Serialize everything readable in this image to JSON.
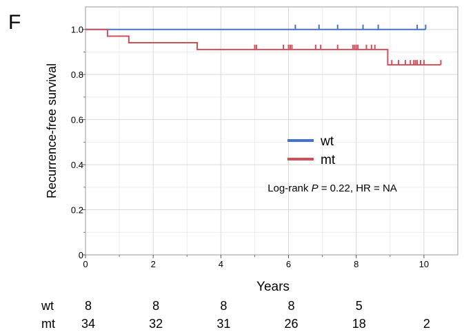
{
  "panel_label": "F",
  "annotation": {
    "prefix": "Log-rank ",
    "p_symbol": "P",
    "suffix": " = 0.22, HR = NA"
  },
  "risk_table": {
    "times": [
      0,
      2,
      4,
      6,
      8,
      10
    ],
    "rows": [
      {
        "label": "wt",
        "counts": [
          "8",
          "8",
          "8",
          "8",
          "5",
          ""
        ]
      },
      {
        "label": "mt",
        "counts": [
          "34",
          "32",
          "31",
          "26",
          "18",
          "2"
        ]
      }
    ]
  },
  "chart_data": {
    "type": "line",
    "subtype": "kaplan-meier",
    "title": "",
    "xlabel": "Years",
    "ylabel": "Recurrence-free survival",
    "xlim": [
      0,
      11
    ],
    "ylim": [
      0,
      1.1
    ],
    "x_ticks": [
      0,
      2,
      4,
      6,
      8,
      10
    ],
    "y_ticks": [
      0,
      0.2,
      0.4,
      0.6,
      0.8,
      1.0
    ],
    "y_tick_labels": [
      "0",
      "0.2",
      "0.4",
      "0.6",
      "0.8",
      "1.0"
    ],
    "x_minor_ticks": [
      1,
      3,
      5,
      7,
      9
    ],
    "y_minor_ticks": [
      0.1,
      0.3,
      0.5,
      0.7,
      0.9
    ],
    "grid": true,
    "legend_position": "center-right",
    "series": [
      {
        "name": "wt",
        "color": "#4472c4",
        "steps": [
          [
            0,
            1.0
          ],
          [
            10.05,
            1.0
          ]
        ],
        "censor_times": [
          6.2,
          6.9,
          7.45,
          8.2,
          8.65,
          9.8,
          10.05
        ]
      },
      {
        "name": "mt",
        "color": "#d0505a",
        "steps": [
          [
            0,
            1.0
          ],
          [
            0.65,
            0.97
          ],
          [
            1.28,
            0.941
          ],
          [
            3.3,
            0.911
          ],
          [
            8.93,
            0.843
          ],
          [
            10.5,
            0.843
          ]
        ],
        "censor_times": [
          5.0,
          5.05,
          5.85,
          6.0,
          6.05,
          6.1,
          6.8,
          6.95,
          7.45,
          7.9,
          7.95,
          8.0,
          8.05,
          8.3,
          8.45,
          8.55,
          9.05,
          9.25,
          9.45,
          9.6,
          9.7,
          9.75,
          9.8,
          9.9,
          10.0,
          10.5
        ]
      }
    ]
  }
}
